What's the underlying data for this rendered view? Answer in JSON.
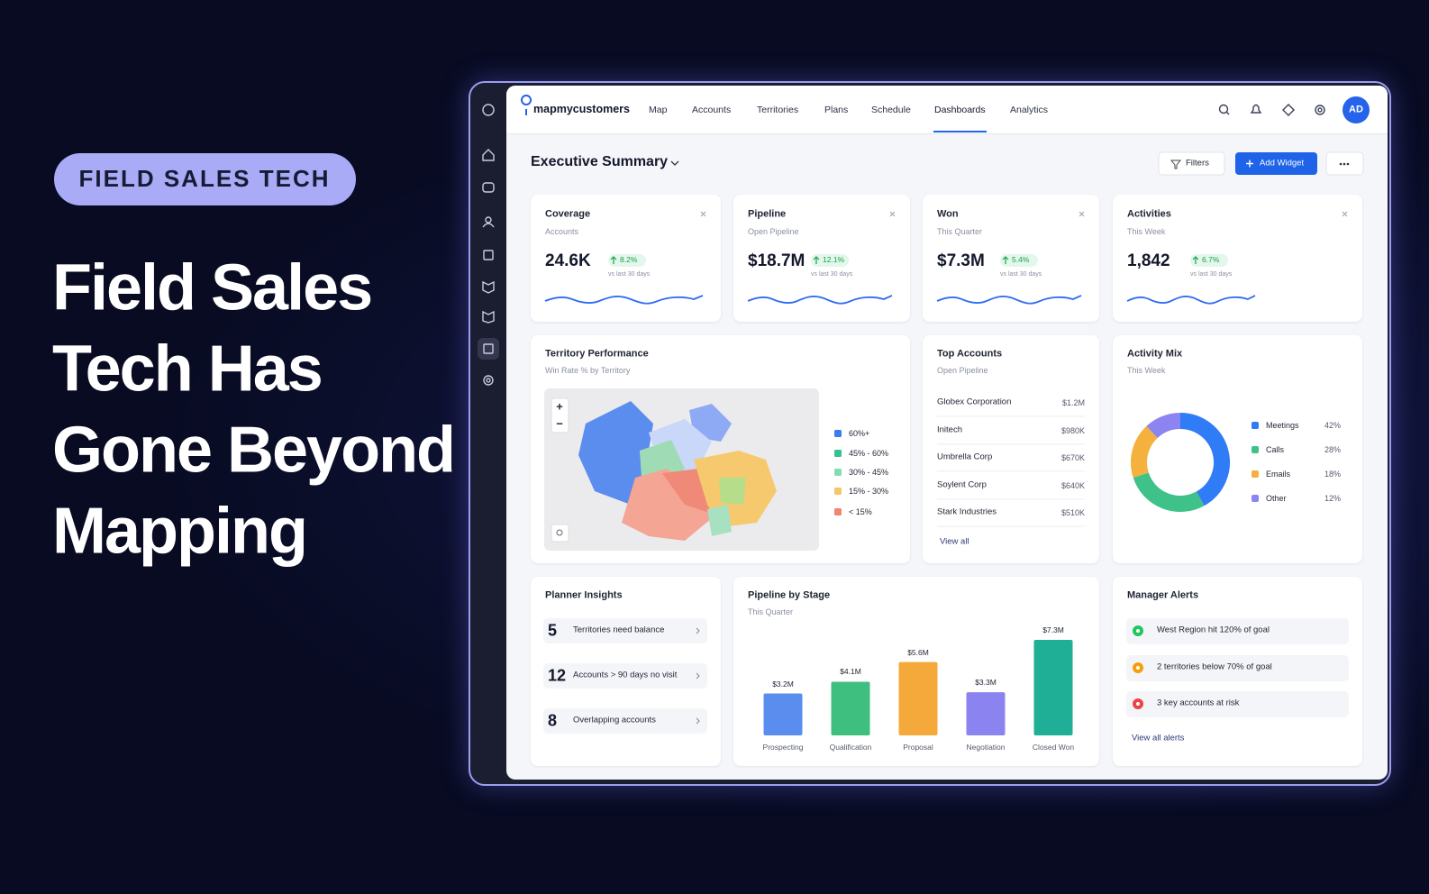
{
  "hero": {
    "tag": "FIELD SALES TECH",
    "headline": [
      "Field Sales",
      "Tech Has",
      "Gone Beyond",
      "Mapping"
    ]
  },
  "nav": {
    "brand": "mapmycustomers",
    "items": [
      "Map",
      "Accounts",
      "Territories",
      "Plans",
      "Schedule",
      "Dashboards",
      "Analytics"
    ],
    "active": 5,
    "avatar": "AD"
  },
  "toolbar": {
    "title": "Executive Summary",
    "filters": "Filters",
    "add_widget": "Add Widget"
  },
  "kpis": [
    {
      "title": "Coverage",
      "subtitle": "Accounts",
      "value": "24.6K",
      "change": "8.2%",
      "note": "vs last 30 days"
    },
    {
      "title": "Pipeline",
      "subtitle": "Open Pipeline",
      "value": "$18.7M",
      "change": "12.1%",
      "note": "vs last 30 days"
    },
    {
      "title": "Won",
      "subtitle": "This Quarter",
      "value": "$7.3M",
      "change": "5.4%",
      "note": "vs last 30 days"
    },
    {
      "title": "Activities",
      "subtitle": "This Week",
      "value": "1,842",
      "change": "6.7%",
      "note": "vs last 30 days"
    }
  ],
  "territory": {
    "title": "Territory Performance",
    "subtitle": "Win Rate % by Territory",
    "map_controls": [
      "+",
      "−"
    ],
    "legend": [
      "60%+",
      "45% - 60%",
      "30% - 45%",
      "15% - 30%",
      "< 15%"
    ],
    "colors": [
      "#3b7cf0",
      "#34c38f",
      "#86dcb0",
      "#f7c56a",
      "#f28470"
    ]
  },
  "top_accounts": {
    "title": "Top Accounts",
    "subtitle": "Open Pipeline",
    "rows": [
      [
        "Globex Corporation",
        "$1.2M"
      ],
      [
        "Initech",
        "$980K"
      ],
      [
        "Umbrella Corp",
        "$670K"
      ],
      [
        "Soylent Corp",
        "$640K"
      ],
      [
        "Stark Industries",
        "$510K"
      ]
    ],
    "link": "View all"
  },
  "activity_mix": {
    "type": "pie",
    "title": "Activity Mix",
    "subtitle": "This Week",
    "categories": [
      "Meetings",
      "Calls",
      "Emails",
      "Other"
    ],
    "values": [
      42,
      28,
      18,
      12
    ],
    "value_labels": [
      "42%",
      "28%",
      "18%",
      "12%"
    ],
    "colors": [
      "#2f7cf6",
      "#3ec28a",
      "#f5b13d",
      "#8c84f0"
    ]
  },
  "planner": {
    "title": "Planner Insights",
    "rows": [
      [
        5,
        "Territories need balance"
      ],
      [
        12,
        "Accounts > 90 days no visit"
      ],
      [
        8,
        "Overlapping accounts"
      ]
    ]
  },
  "pipeline": {
    "type": "bar",
    "title": "Pipeline by Stage",
    "subtitle": "This Quarter",
    "categories": [
      "Prospecting",
      "Qualification",
      "Proposal",
      "Negotiation",
      "Closed Won"
    ],
    "values": [
      3.2,
      4.1,
      5.6,
      3.3,
      7.3
    ],
    "value_labels": [
      "$3.2M",
      "$4.1M",
      "$5.6M",
      "$3.3M",
      "$7.3M"
    ],
    "colors": [
      "#5b8def",
      "#3fbf7f",
      "#f5a93a",
      "#8b84f0",
      "#1fae96"
    ]
  },
  "alerts": {
    "title": "Manager Alerts",
    "items": [
      {
        "text": "West Region hit 120% of goal",
        "color": "#22c55e"
      },
      {
        "text": "2 territories below 70% of goal",
        "color": "#f59e0b"
      },
      {
        "text": "3 key accounts at risk",
        "color": "#ef4444"
      }
    ],
    "link": "View all alerts"
  }
}
